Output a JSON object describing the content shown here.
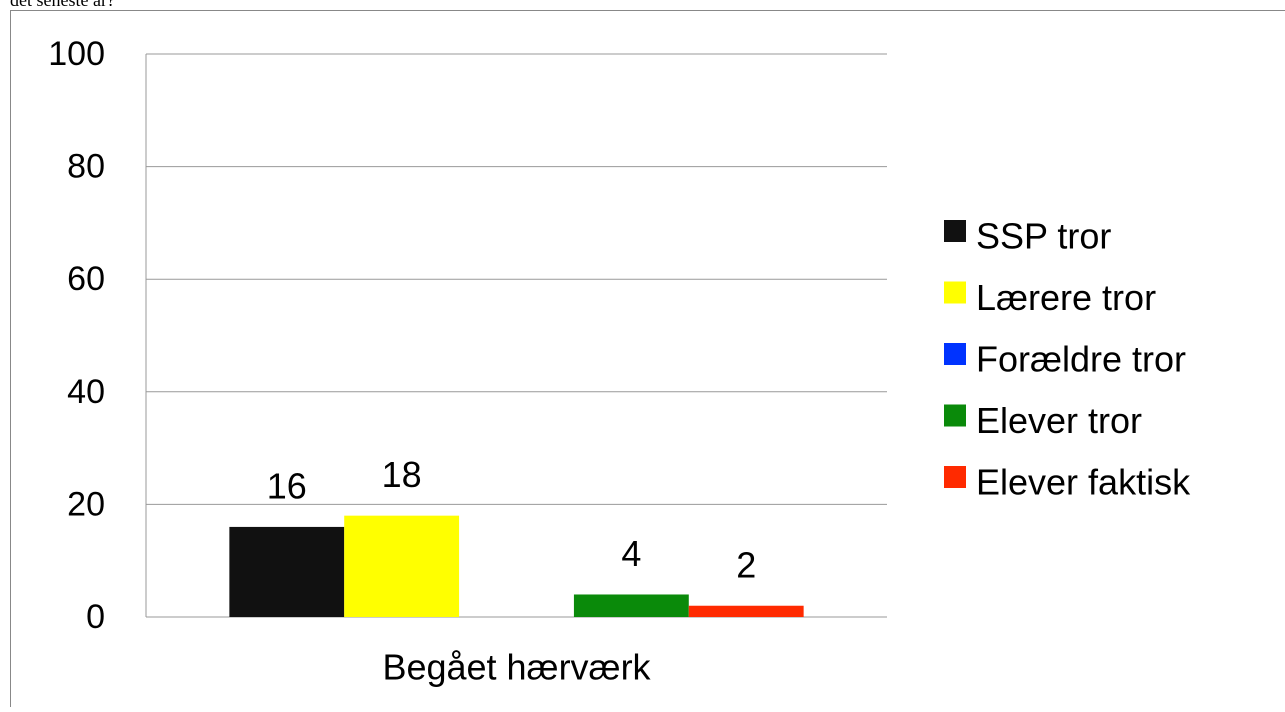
{
  "chart_data": {
    "type": "bar",
    "title": "det seneste år?",
    "categories": [
      "Begået hærværk"
    ],
    "series": [
      {
        "name": "SSP tror",
        "color": "#111111",
        "values": [
          16
        ]
      },
      {
        "name": "Lærere tror",
        "color": "#ffff00",
        "values": [
          18
        ]
      },
      {
        "name": "Forældre tror",
        "color": "#0033ff",
        "values": [
          null
        ]
      },
      {
        "name": "Elever tror",
        "color": "#0a8a0a",
        "values": [
          4
        ]
      },
      {
        "name": "Elever faktisk",
        "color": "#ff2a00",
        "values": [
          2
        ]
      }
    ],
    "ylim": [
      0,
      100
    ],
    "yticks": [
      0,
      20,
      40,
      60,
      80,
      100
    ],
    "grid": true,
    "legend": "right"
  }
}
